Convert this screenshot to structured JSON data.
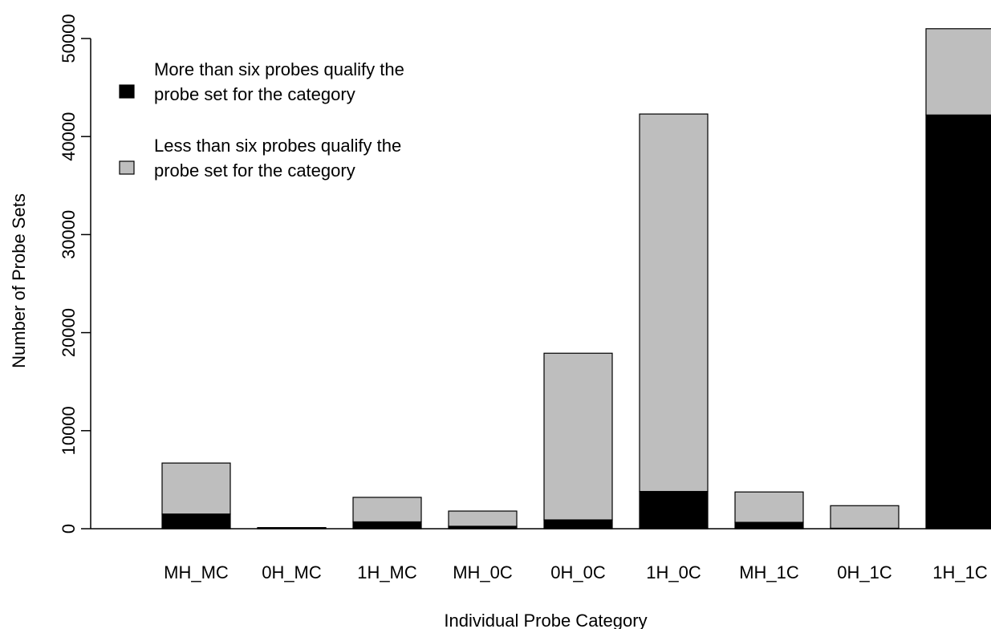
{
  "chart_data": {
    "type": "bar",
    "stacked": true,
    "xlabel": "Individual Probe Category",
    "ylabel": "Number of Probe Sets",
    "ylim": [
      0,
      52000
    ],
    "yticks": [
      0,
      10000,
      20000,
      30000,
      40000,
      50000
    ],
    "categories": [
      "MH_MC",
      "0H_MC",
      "1H_MC",
      "MH_0C",
      "0H_0C",
      "1H_0C",
      "MH_1C",
      "0H_1C",
      "1H_1C"
    ],
    "series": [
      {
        "name": "More than six probes qualify the probe set for the category",
        "color": "#000000",
        "values": [
          1500,
          50,
          700,
          250,
          900,
          3800,
          650,
          50,
          42200
        ]
      },
      {
        "name": "Less than six probes qualify the probe set for the category",
        "color": "#bebebe",
        "values": [
          5200,
          50,
          2500,
          1550,
          17000,
          38500,
          3100,
          2300,
          8800
        ]
      }
    ],
    "legend": {
      "position": "top-left",
      "entries": [
        {
          "lines": [
            "More than six probes qualify the",
            "probe set for the category"
          ],
          "color": "#000000"
        },
        {
          "lines": [
            "Less than six probes qualify the",
            "probe set for the category"
          ],
          "color": "#bebebe"
        }
      ]
    },
    "grid": false
  }
}
